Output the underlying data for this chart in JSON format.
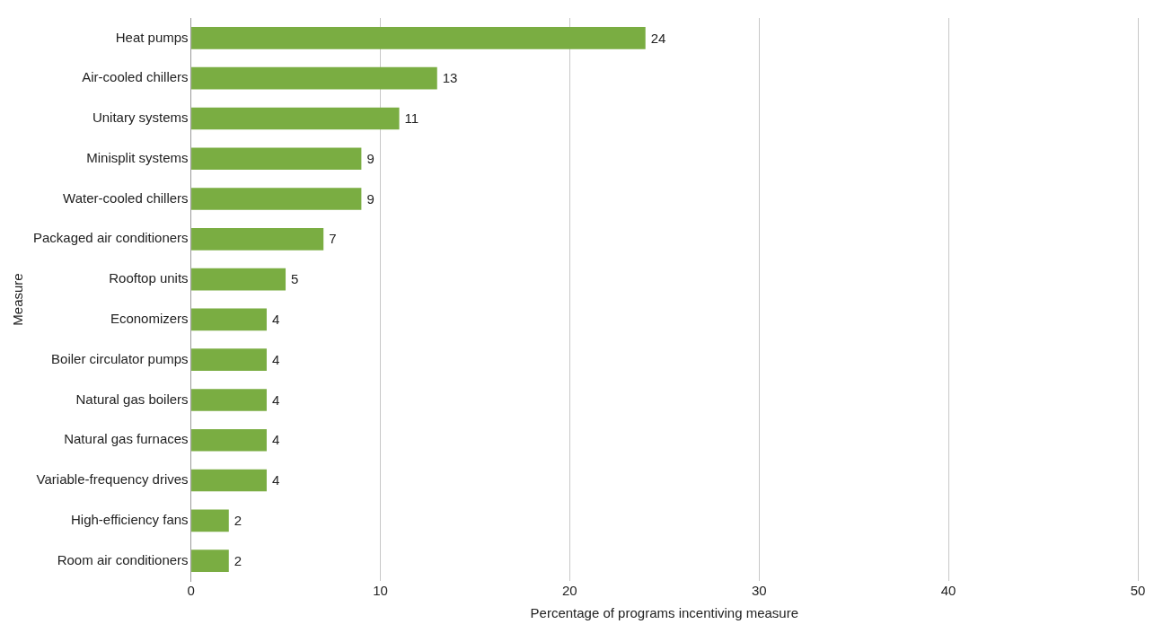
{
  "chart_data": {
    "type": "bar",
    "orientation": "horizontal",
    "xlabel": "Percentage of programs incentiving measure",
    "ylabel": "Measure",
    "categories": [
      "Heat pumps",
      "Air-cooled chillers",
      "Unitary systems",
      "Minisplit systems",
      "Water-cooled chillers",
      "Packaged air conditioners",
      "Rooftop units",
      "Economizers",
      "Boiler circulator pumps",
      "Natural gas boilers",
      "Natural gas furnaces",
      "Variable-frequency drives",
      "High-efficiency fans",
      "Room air conditioners"
    ],
    "values": [
      24,
      13,
      11,
      9,
      9,
      7,
      5,
      4,
      4,
      4,
      4,
      4,
      2,
      2
    ],
    "color": "#7aad42",
    "xlim": [
      0,
      50
    ],
    "xticks": [
      0,
      10,
      20,
      30,
      40,
      50
    ],
    "grid": "x",
    "data_labels": true
  }
}
